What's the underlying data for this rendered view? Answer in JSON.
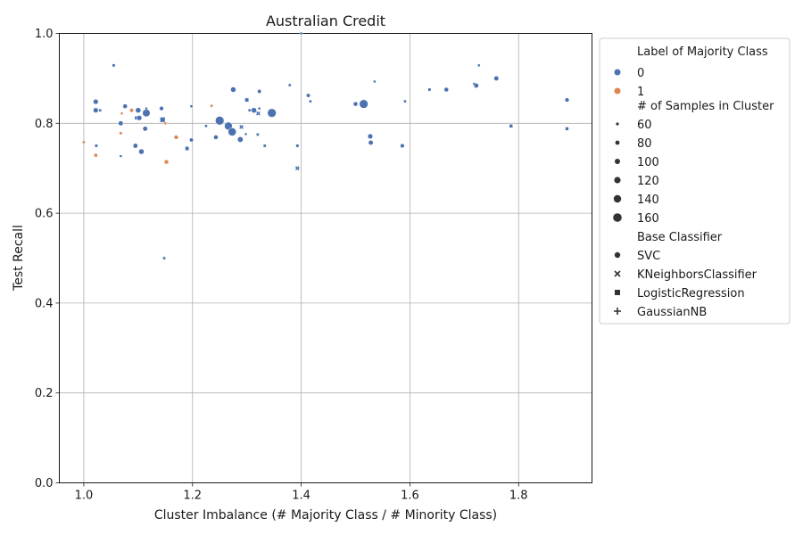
{
  "chart_data": {
    "type": "scatter",
    "title": "Australian Credit",
    "xlabel": "Cluster Imbalance (# Majority Class / # Minority Class)",
    "ylabel": "Test Recall",
    "xlim": [
      0.955,
      1.935
    ],
    "ylim": [
      0.0,
      1.0
    ],
    "xticks": [
      "1.0",
      "1.2",
      "1.4",
      "1.6",
      "1.8"
    ],
    "xtick_values": [
      1.0,
      1.2,
      1.4,
      1.6,
      1.8
    ],
    "yticks": [
      "0.0",
      "0.2",
      "0.4",
      "0.6",
      "0.8",
      "1.0"
    ],
    "ytick_values": [
      0.0,
      0.2,
      0.4,
      0.6,
      0.8,
      1.0
    ],
    "grid": true,
    "legend_position": "outside-right",
    "legend": {
      "hue_title": "Label of Majority Class",
      "hue_entries": [
        {
          "label": "0",
          "color": "#4c72b0"
        },
        {
          "label": "1",
          "color": "#dd8452"
        }
      ],
      "size_title": "# of Samples in Cluster",
      "size_entries": [
        {
          "label": "60",
          "value": 60
        },
        {
          "label": "80",
          "value": 80
        },
        {
          "label": "100",
          "value": 100
        },
        {
          "label": "120",
          "value": 120
        },
        {
          "label": "140",
          "value": 140
        },
        {
          "label": "160",
          "value": 160
        }
      ],
      "style_title": "Base Classifier",
      "style_entries": [
        {
          "label": "SVC",
          "marker": "circle"
        },
        {
          "label": "KNeighborsClassifier",
          "marker": "x"
        },
        {
          "label": "LogisticRegression",
          "marker": "square"
        },
        {
          "label": "GaussianNB",
          "marker": "plus"
        }
      ]
    },
    "points": [
      {
        "x": 1.022,
        "y": 0.848,
        "label": "0",
        "clf": "SVC",
        "n": 95
      },
      {
        "x": 1.022,
        "y": 0.829,
        "label": "0",
        "clf": "SVC",
        "n": 95
      },
      {
        "x": 1.03,
        "y": 0.829,
        "label": "0",
        "clf": "LogisticRegression",
        "n": 60
      },
      {
        "x": 1.068,
        "y": 0.8,
        "label": "0",
        "clf": "SVC",
        "n": 90
      },
      {
        "x": 1.076,
        "y": 0.838,
        "label": "0",
        "clf": "SVC",
        "n": 85
      },
      {
        "x": 1.095,
        "y": 0.75,
        "label": "0",
        "clf": "SVC",
        "n": 90
      },
      {
        "x": 1.097,
        "y": 0.812,
        "label": "0",
        "clf": "LogisticRegression",
        "n": 80
      },
      {
        "x": 1.1,
        "y": 0.829,
        "label": "0",
        "clf": "SVC",
        "n": 100
      },
      {
        "x": 1.102,
        "y": 0.812,
        "label": "0",
        "clf": "SVC",
        "n": 95
      },
      {
        "x": 1.106,
        "y": 0.737,
        "label": "0",
        "clf": "SVC",
        "n": 100
      },
      {
        "x": 1.113,
        "y": 0.788,
        "label": "0",
        "clf": "SVC",
        "n": 90
      },
      {
        "x": 1.115,
        "y": 0.823,
        "label": "0",
        "clf": "SVC",
        "n": 140
      },
      {
        "x": 1.143,
        "y": 0.833,
        "label": "0",
        "clf": "SVC",
        "n": 80
      },
      {
        "x": 1.145,
        "y": 0.808,
        "label": "0",
        "clf": "LogisticRegression",
        "n": 110
      },
      {
        "x": 1.148,
        "y": 0.5,
        "label": "0",
        "clf": "GaussianNB",
        "n": 55
      },
      {
        "x": 1.19,
        "y": 0.744,
        "label": "0",
        "clf": "LogisticRegression",
        "n": 85
      },
      {
        "x": 1.198,
        "y": 0.763,
        "label": "0",
        "clf": "SVC",
        "n": 75
      },
      {
        "x": 1.198,
        "y": 0.838,
        "label": "0",
        "clf": "LogisticRegression",
        "n": 60
      },
      {
        "x": 1.225,
        "y": 0.794,
        "label": "0",
        "clf": "LogisticRegression",
        "n": 60
      },
      {
        "x": 1.243,
        "y": 0.769,
        "label": "0",
        "clf": "SVC",
        "n": 85
      },
      {
        "x": 1.25,
        "y": 0.806,
        "label": "0",
        "clf": "SVC",
        "n": 160
      },
      {
        "x": 1.266,
        "y": 0.794,
        "label": "0",
        "clf": "SVC",
        "n": 145
      },
      {
        "x": 1.273,
        "y": 0.781,
        "label": "0",
        "clf": "SVC",
        "n": 150
      },
      {
        "x": 1.275,
        "y": 0.875,
        "label": "0",
        "clf": "SVC",
        "n": 100
      },
      {
        "x": 1.288,
        "y": 0.764,
        "label": "0",
        "clf": "SVC",
        "n": 105
      },
      {
        "x": 1.29,
        "y": 0.792,
        "label": "0",
        "clf": "KNeighborsClassifier",
        "n": 70
      },
      {
        "x": 1.298,
        "y": 0.776,
        "label": "0",
        "clf": "LogisticRegression",
        "n": 55
      },
      {
        "x": 1.3,
        "y": 0.852,
        "label": "0",
        "clf": "LogisticRegression",
        "n": 85
      },
      {
        "x": 1.305,
        "y": 0.829,
        "label": "0",
        "clf": "SVC",
        "n": 60
      },
      {
        "x": 1.313,
        "y": 0.829,
        "label": "0",
        "clf": "SVC",
        "n": 100
      },
      {
        "x": 1.32,
        "y": 0.775,
        "label": "0",
        "clf": "GaussianNB",
        "n": 55
      },
      {
        "x": 1.321,
        "y": 0.822,
        "label": "0",
        "clf": "KNeighborsClassifier",
        "n": 70
      },
      {
        "x": 1.323,
        "y": 0.871,
        "label": "0",
        "clf": "SVC",
        "n": 75
      },
      {
        "x": 1.323,
        "y": 0.833,
        "label": "0",
        "clf": "LogisticRegression",
        "n": 55
      },
      {
        "x": 1.333,
        "y": 0.75,
        "label": "0",
        "clf": "LogisticRegression",
        "n": 65
      },
      {
        "x": 1.346,
        "y": 0.823,
        "label": "0",
        "clf": "SVC",
        "n": 160
      },
      {
        "x": 1.379,
        "y": 0.885,
        "label": "0",
        "clf": "LogisticRegression",
        "n": 60
      },
      {
        "x": 1.393,
        "y": 0.75,
        "label": "0",
        "clf": "SVC",
        "n": 65
      },
      {
        "x": 1.393,
        "y": 0.7,
        "label": "0",
        "clf": "KNeighborsClassifier",
        "n": 70
      },
      {
        "x": 1.4,
        "y": 1.0,
        "label": "0",
        "clf": "SVC",
        "n": 55
      },
      {
        "x": 1.413,
        "y": 0.862,
        "label": "0",
        "clf": "SVC",
        "n": 75
      },
      {
        "x": 1.417,
        "y": 0.849,
        "label": "0",
        "clf": "LogisticRegression",
        "n": 60
      },
      {
        "x": 1.5,
        "y": 0.843,
        "label": "0",
        "clf": "SVC",
        "n": 85
      },
      {
        "x": 1.515,
        "y": 0.843,
        "label": "0",
        "clf": "SVC",
        "n": 160
      },
      {
        "x": 1.527,
        "y": 0.771,
        "label": "0",
        "clf": "SVC",
        "n": 95
      },
      {
        "x": 1.528,
        "y": 0.757,
        "label": "0",
        "clf": "SVC",
        "n": 90
      },
      {
        "x": 1.535,
        "y": 0.893,
        "label": "0",
        "clf": "LogisticRegression",
        "n": 55
      },
      {
        "x": 1.586,
        "y": 0.75,
        "label": "0",
        "clf": "SVC",
        "n": 80
      },
      {
        "x": 1.591,
        "y": 0.849,
        "label": "0",
        "clf": "LogisticRegression",
        "n": 60
      },
      {
        "x": 1.636,
        "y": 0.875,
        "label": "0",
        "clf": "LogisticRegression",
        "n": 65
      },
      {
        "x": 1.667,
        "y": 0.875,
        "label": "0",
        "clf": "SVC",
        "n": 85
      },
      {
        "x": 1.718,
        "y": 0.888,
        "label": "0",
        "clf": "LogisticRegression",
        "n": 55
      },
      {
        "x": 1.722,
        "y": 0.884,
        "label": "0",
        "clf": "SVC",
        "n": 90
      },
      {
        "x": 1.727,
        "y": 0.929,
        "label": "0",
        "clf": "LogisticRegression",
        "n": 55
      },
      {
        "x": 1.759,
        "y": 0.9,
        "label": "0",
        "clf": "SVC",
        "n": 90
      },
      {
        "x": 1.786,
        "y": 0.794,
        "label": "0",
        "clf": "LogisticRegression",
        "n": 75
      },
      {
        "x": 1.889,
        "y": 0.852,
        "label": "0",
        "clf": "SVC",
        "n": 80
      },
      {
        "x": 1.889,
        "y": 0.788,
        "label": "0",
        "clf": "LogisticRegression",
        "n": 75
      },
      {
        "x": 1.023,
        "y": 0.75,
        "label": "0",
        "clf": "LogisticRegression",
        "n": 65
      },
      {
        "x": 1.055,
        "y": 0.929,
        "label": "0",
        "clf": "LogisticRegression",
        "n": 65
      },
      {
        "x": 1.068,
        "y": 0.727,
        "label": "0",
        "clf": "LogisticRegression",
        "n": 55
      },
      {
        "x": 1.115,
        "y": 0.833,
        "label": "0",
        "clf": "LogisticRegression",
        "n": 55
      },
      {
        "x": 1.0,
        "y": 0.758,
        "label": "1",
        "clf": "LogisticRegression",
        "n": 60
      },
      {
        "x": 1.022,
        "y": 0.729,
        "label": "1",
        "clf": "LogisticRegression",
        "n": 75
      },
      {
        "x": 1.068,
        "y": 0.778,
        "label": "1",
        "clf": "SVC",
        "n": 60
      },
      {
        "x": 1.07,
        "y": 0.822,
        "label": "1",
        "clf": "LogisticRegression",
        "n": 55
      },
      {
        "x": 1.088,
        "y": 0.829,
        "label": "1",
        "clf": "SVC",
        "n": 75
      },
      {
        "x": 1.15,
        "y": 0.8,
        "label": "1",
        "clf": "LogisticRegression",
        "n": 55
      },
      {
        "x": 1.152,
        "y": 0.714,
        "label": "1",
        "clf": "LogisticRegression",
        "n": 85
      },
      {
        "x": 1.17,
        "y": 0.769,
        "label": "1",
        "clf": "SVC",
        "n": 80
      },
      {
        "x": 1.235,
        "y": 0.839,
        "label": "1",
        "clf": "LogisticRegression",
        "n": 60
      }
    ]
  }
}
